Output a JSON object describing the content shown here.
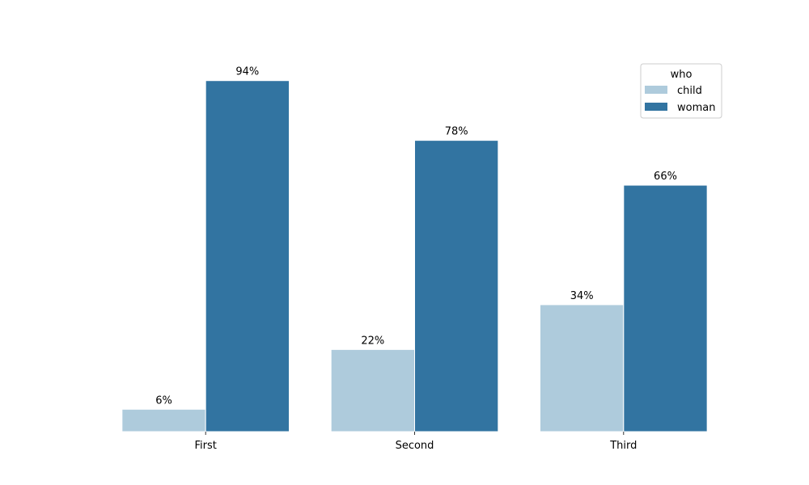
{
  "chart_data": {
    "type": "bar",
    "categories": [
      "First",
      "Second",
      "Third"
    ],
    "series": [
      {
        "name": "child",
        "values": [
          6,
          22,
          34
        ],
        "labels": [
          "6%",
          "22%",
          "34%"
        ]
      },
      {
        "name": "woman",
        "values": [
          94,
          78,
          66
        ],
        "labels": [
          "94%",
          "78%",
          "66%"
        ]
      }
    ],
    "ylim": [
      0,
      100
    ],
    "grid": false,
    "legend": {
      "title": "who",
      "placement": "top-right"
    }
  },
  "colors": {
    "child": "#aecbdc",
    "woman": "#3274a1"
  }
}
